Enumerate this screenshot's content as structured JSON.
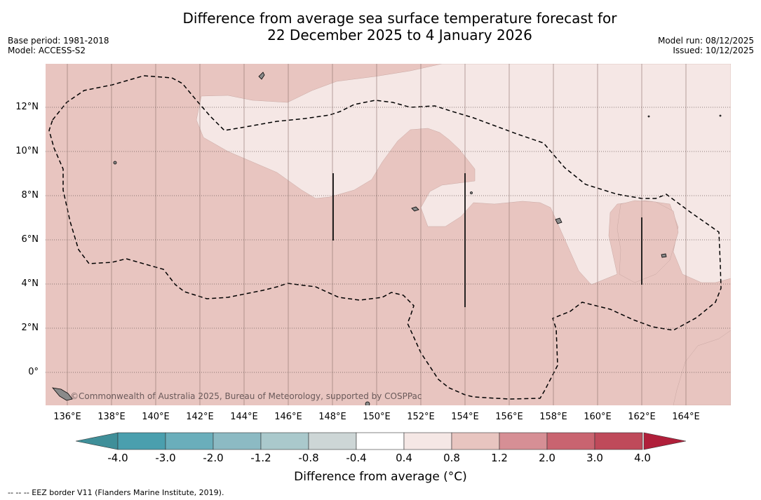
{
  "title_line1": "Difference from average sea surface temperature forecast for",
  "title_line2": "22 December 2025 to 4 January 2026",
  "base_period": "Base period: 1981-2018",
  "model": "Model: ACCESS-S2",
  "model_run": "Model run: 08/12/2025",
  "issued": "Issued: 10/12/2025",
  "copyright": "©Commonwealth of Australia 2025, Bureau of Meteorology, supported by COSPPac",
  "lat_labels": [
    "12°N",
    "10°N",
    "8°N",
    "6°N",
    "4°N",
    "2°N",
    "0°"
  ],
  "lon_labels": [
    "136°E",
    "138°E",
    "140°E",
    "142°E",
    "144°E",
    "146°E",
    "148°E",
    "150°E",
    "152°E",
    "154°E",
    "156°E",
    "158°E",
    "160°E",
    "162°E",
    "164°E"
  ],
  "colorbar": {
    "label": "Difference from average (°C)",
    "ticks": [
      "-4.0",
      "-3.0",
      "-2.0",
      "-1.2",
      "-0.8",
      "-0.4",
      "0.4",
      "0.8",
      "1.2",
      "2.0",
      "3.0",
      "4.0"
    ],
    "colors": [
      "#4a9fae",
      "#6aaebb",
      "#8cbac3",
      "#aac9cc",
      "#cdd6d6",
      "#ffffff",
      "#f5e7e5",
      "#e8c5c0",
      "#d68f95",
      "#c96470",
      "#bf4a5a"
    ],
    "under_color": "#3f8f99",
    "over_color": "#b01f3a"
  },
  "colors": {
    "warm_0408": "#f5e7e5",
    "warm_0812": "#e8c5c0"
  },
  "footnote": "--  --  -- EEZ border V11 (Flanders Marine Institute, 2019)."
}
